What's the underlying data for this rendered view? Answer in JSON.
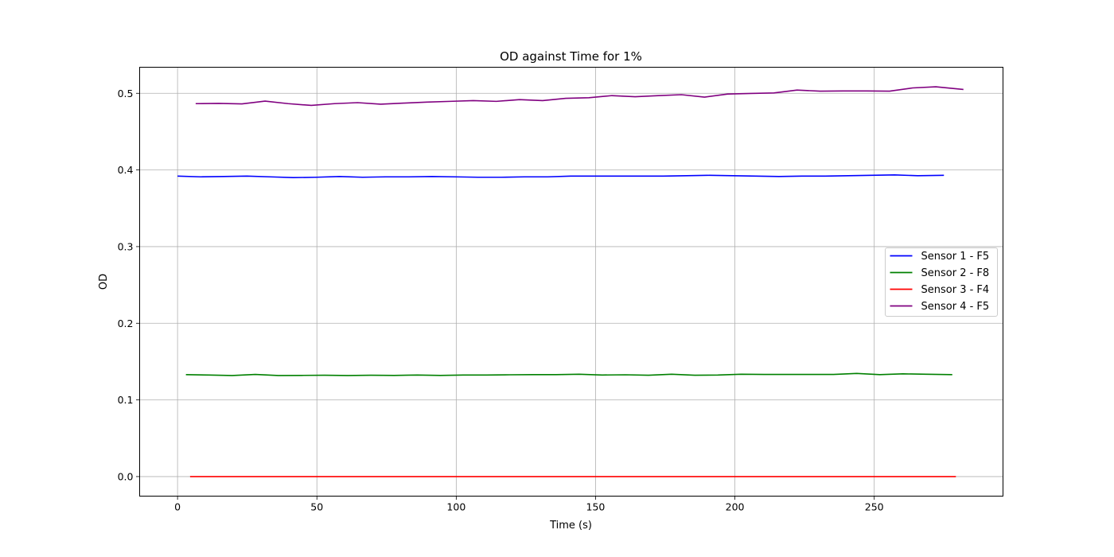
{
  "chart_data": {
    "type": "line",
    "title": "OD against Time for 1%",
    "xlabel": "Time (s)",
    "ylabel": "OD",
    "xlim": [
      -13.6,
      296.2
    ],
    "ylim": [
      -0.0255,
      0.534
    ],
    "xticks": [
      0,
      50,
      100,
      150,
      200,
      250
    ],
    "yticks": [
      0.0,
      0.1,
      0.2,
      0.3,
      0.4,
      0.5
    ],
    "xtick_labels": [
      "0",
      "50",
      "100",
      "150",
      "200",
      "250"
    ],
    "ytick_labels": [
      "0.0",
      "0.1",
      "0.2",
      "0.3",
      "0.4",
      "0.5"
    ],
    "grid": true,
    "legend_position": "center-right",
    "series": [
      {
        "name": "Sensor 1 - F5",
        "color": "#0000ff",
        "x": [
          0,
          8.3,
          16.6,
          24.9,
          33.2,
          41.5,
          49.8,
          58.1,
          66.4,
          74.7,
          83.0,
          91.3,
          99.6,
          107.9,
          116.2,
          124.5,
          132.8,
          141.1,
          149.4,
          157.7,
          166.0,
          174.3,
          182.6,
          190.9,
          199.2,
          207.5,
          215.8,
          224.1,
          232.4,
          240.7,
          249.0,
          257.3,
          265.6,
          275.0
        ],
        "y": [
          0.392,
          0.391,
          0.3915,
          0.392,
          0.391,
          0.39,
          0.3905,
          0.3915,
          0.3905,
          0.391,
          0.391,
          0.3915,
          0.391,
          0.3905,
          0.3905,
          0.391,
          0.391,
          0.392,
          0.392,
          0.392,
          0.392,
          0.392,
          0.3925,
          0.393,
          0.3925,
          0.392,
          0.3915,
          0.392,
          0.392,
          0.3925,
          0.393,
          0.3935,
          0.3925,
          0.393
        ]
      },
      {
        "name": "Sensor 2 - F8",
        "color": "#008000",
        "x": [
          3,
          11.3,
          19.6,
          27.9,
          36.2,
          44.5,
          52.8,
          61.1,
          69.4,
          77.7,
          86.0,
          94.3,
          102.6,
          110.9,
          119.2,
          127.5,
          135.8,
          144.1,
          152.4,
          160.7,
          169.0,
          177.3,
          185.6,
          193.9,
          202.2,
          210.5,
          218.8,
          227.1,
          235.4,
          243.7,
          252.0,
          260.3,
          268.6,
          278.0
        ],
        "y": [
          0.133,
          0.1325,
          0.1318,
          0.1332,
          0.1318,
          0.132,
          0.1322,
          0.1318,
          0.1322,
          0.132,
          0.1325,
          0.132,
          0.1325,
          0.1325,
          0.1328,
          0.133,
          0.133,
          0.1335,
          0.1325,
          0.1328,
          0.1322,
          0.1335,
          0.1322,
          0.1325,
          0.1335,
          0.1332,
          0.1332,
          0.1332,
          0.1332,
          0.1345,
          0.133,
          0.134,
          0.1335,
          0.133
        ]
      },
      {
        "name": "Sensor 3 - F4",
        "color": "#ff0000",
        "x": [
          4.5,
          279.3
        ],
        "y": [
          0.0,
          0.0
        ]
      },
      {
        "name": "Sensor 4 - F5",
        "color": "#800080",
        "x": [
          6.5,
          14.8,
          23.1,
          31.4,
          39.7,
          48.0,
          56.3,
          64.6,
          72.9,
          81.2,
          89.5,
          97.8,
          106.1,
          114.4,
          122.7,
          131.0,
          139.3,
          147.6,
          155.9,
          164.2,
          172.5,
          180.8,
          189.1,
          197.4,
          205.7,
          214.0,
          222.3,
          230.6,
          238.9,
          247.2,
          255.5,
          263.8,
          272.1,
          282.0
        ],
        "y": [
          0.4865,
          0.4868,
          0.4862,
          0.4898,
          0.4865,
          0.4842,
          0.4865,
          0.4878,
          0.4858,
          0.4872,
          0.4885,
          0.4895,
          0.4905,
          0.4895,
          0.4918,
          0.4905,
          0.4935,
          0.4942,
          0.497,
          0.4955,
          0.497,
          0.4982,
          0.495,
          0.499,
          0.4998,
          0.5005,
          0.5042,
          0.5028,
          0.503,
          0.503,
          0.5028,
          0.507,
          0.5085,
          0.505
        ]
      }
    ]
  }
}
